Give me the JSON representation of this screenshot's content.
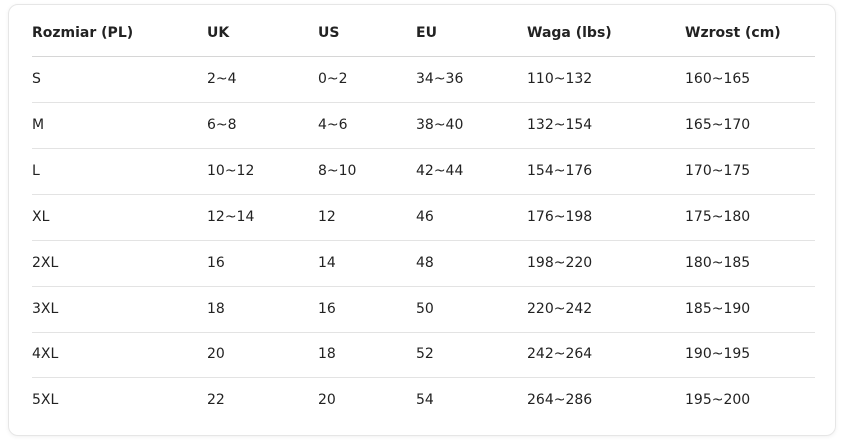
{
  "table": {
    "header": [
      "Rozmiar (PL)",
      "UK",
      "US",
      "EU",
      "Waga (lbs)",
      "Wzrost (cm)"
    ],
    "rows": [
      [
        "S",
        "2~4",
        "0~2",
        "34~36",
        "110~132",
        "160~165"
      ],
      [
        "M",
        "6~8",
        "4~6",
        "38~40",
        "132~154",
        "165~170"
      ],
      [
        "L",
        "10~12",
        "8~10",
        "42~44",
        "154~176",
        "170~175"
      ],
      [
        "XL",
        "12~14",
        "12",
        "46",
        "176~198",
        "175~180"
      ],
      [
        "2XL",
        "16",
        "14",
        "48",
        "198~220",
        "180~185"
      ],
      [
        "3XL",
        "18",
        "16",
        "50",
        "220~242",
        "185~190"
      ],
      [
        "4XL",
        "20",
        "18",
        "52",
        "242~264",
        "190~195"
      ],
      [
        "5XL",
        "22",
        "20",
        "54",
        "264~286",
        "195~200"
      ]
    ]
  }
}
